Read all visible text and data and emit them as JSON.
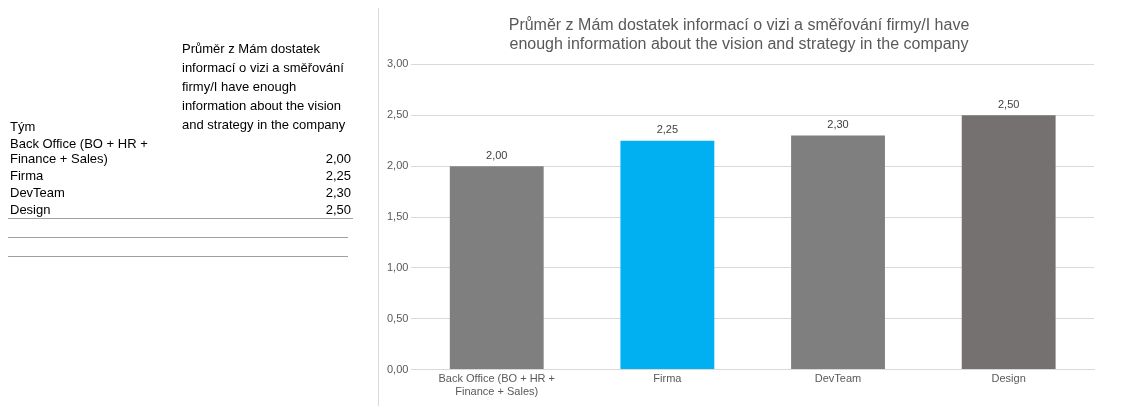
{
  "chart_data": {
    "type": "bar",
    "title": "Průměr z Mám dostatek informací o vizi a směřování firmy/I have enough information about the vision and strategy in the company",
    "categories": [
      "Back Office (BO + HR + Finance + Sales)",
      "Firma",
      "DevTeam",
      "Design"
    ],
    "values": [
      2.0,
      2.25,
      2.3,
      2.5
    ],
    "colors": [
      "#7f7f7f",
      "#00b0f0",
      "#7f7f7f",
      "#767171"
    ],
    "value_labels": [
      "2,00",
      "2,25",
      "2,30",
      "2,50"
    ],
    "ylim": [
      0,
      3
    ],
    "yticks": [
      {
        "value": 0,
        "label": "0,00"
      },
      {
        "value": 0.5,
        "label": "0,50"
      },
      {
        "value": 1,
        "label": "1,00"
      },
      {
        "value": 1.5,
        "label": "1,50"
      },
      {
        "value": 2,
        "label": "2,00"
      },
      {
        "value": 2.5,
        "label": "2,50"
      },
      {
        "value": 3,
        "label": "3,00"
      }
    ],
    "grid": "y",
    "annotations": [
      "Tým"
    ]
  }
}
